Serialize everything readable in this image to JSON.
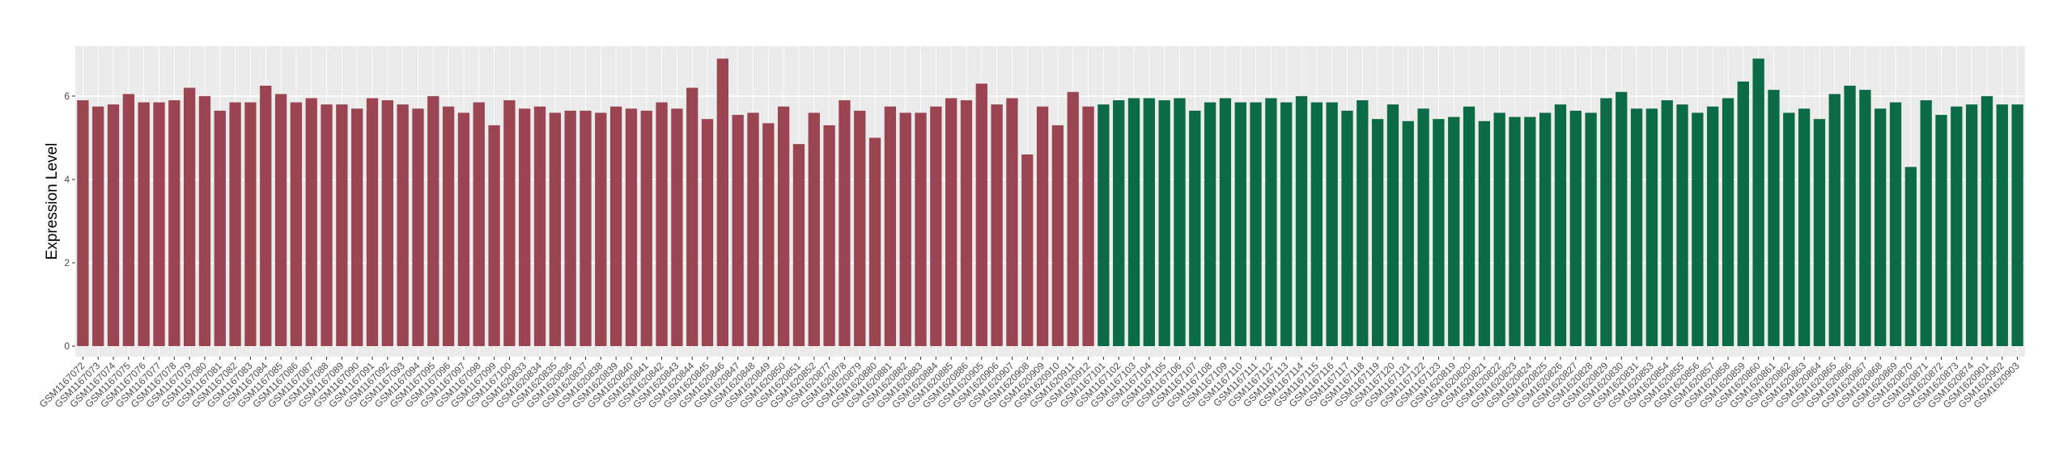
{
  "chart_data": {
    "type": "bar",
    "y_label": "Expression Level",
    "ylim": [
      -0.25,
      7.2
    ],
    "yticks": [
      0,
      2,
      4,
      6
    ],
    "grid": true,
    "categories": [
      "GSM1167072",
      "GSM1167073",
      "GSM1167074",
      "GSM1167075",
      "GSM1167076",
      "GSM1167077",
      "GSM1167078",
      "GSM1167079",
      "GSM1167080",
      "GSM1167081",
      "GSM1167082",
      "GSM1167083",
      "GSM1167084",
      "GSM1167085",
      "GSM1167086",
      "GSM1167087",
      "GSM1167088",
      "GSM1167089",
      "GSM1167090",
      "GSM1167091",
      "GSM1167092",
      "GSM1167093",
      "GSM1167094",
      "GSM1167095",
      "GSM1167096",
      "GSM1167097",
      "GSM1167098",
      "GSM1167099",
      "GSM1167100",
      "GSM1620833",
      "GSM1620834",
      "GSM1620835",
      "GSM1620836",
      "GSM1620837",
      "GSM1620838",
      "GSM1620839",
      "GSM1620840",
      "GSM1620841",
      "GSM1620842",
      "GSM1620843",
      "GSM1620844",
      "GSM1620845",
      "GSM1620846",
      "GSM1620847",
      "GSM1620848",
      "GSM1620849",
      "GSM1620850",
      "GSM1620851",
      "GSM1620852",
      "GSM1620877",
      "GSM1620878",
      "GSM1620879",
      "GSM1620880",
      "GSM1620881",
      "GSM1620882",
      "GSM1620883",
      "GSM1620884",
      "GSM1620885",
      "GSM1620886",
      "GSM1620905",
      "GSM1620906",
      "GSM1620907",
      "GSM1620908",
      "GSM1620909",
      "GSM1620910",
      "GSM1620911",
      "GSM1620912",
      "GSM1167101",
      "GSM1167102",
      "GSM1167103",
      "GSM1167104",
      "GSM1167105",
      "GSM1167106",
      "GSM1167107",
      "GSM1167108",
      "GSM1167109",
      "GSM1167110",
      "GSM1167111",
      "GSM1167112",
      "GSM1167113",
      "GSM1167114",
      "GSM1167115",
      "GSM1167116",
      "GSM1167117",
      "GSM1167118",
      "GSM1167119",
      "GSM1167120",
      "GSM1167121",
      "GSM1167122",
      "GSM1167123",
      "GSM1620819",
      "GSM1620820",
      "GSM1620821",
      "GSM1620822",
      "GSM1620823",
      "GSM1620824",
      "GSM1620825",
      "GSM1620826",
      "GSM1620827",
      "GSM1620828",
      "GSM1620829",
      "GSM1620830",
      "GSM1620831",
      "GSM1620853",
      "GSM1620854",
      "GSM1620855",
      "GSM1620856",
      "GSM1620857",
      "GSM1620858",
      "GSM1620859",
      "GSM1620860",
      "GSM1620861",
      "GSM1620862",
      "GSM1620863",
      "GSM1620864",
      "GSM1620865",
      "GSM1620866",
      "GSM1620867",
      "GSM1620868",
      "GSM1620869",
      "GSM1620870",
      "GSM1620871",
      "GSM1620872",
      "GSM1620873",
      "GSM1620874",
      "GSM1620901",
      "GSM1620902",
      "GSM1620903"
    ],
    "values": [
      5.9,
      5.75,
      5.8,
      6.05,
      5.85,
      5.85,
      5.9,
      6.2,
      6.0,
      5.65,
      5.85,
      5.85,
      6.25,
      6.05,
      5.85,
      5.95,
      5.8,
      5.8,
      5.7,
      5.95,
      5.9,
      5.8,
      5.7,
      6.0,
      5.75,
      5.6,
      5.85,
      5.3,
      5.9,
      5.7,
      5.75,
      5.6,
      5.65,
      5.65,
      5.6,
      5.75,
      5.7,
      5.65,
      5.85,
      5.7,
      6.2,
      5.45,
      6.9,
      5.55,
      5.6,
      5.35,
      5.75,
      4.85,
      5.6,
      5.3,
      5.9,
      5.65,
      5.0,
      5.75,
      5.6,
      5.6,
      5.75,
      5.95,
      5.9,
      6.3,
      5.8,
      5.95,
      4.6,
      5.75,
      5.3,
      6.1,
      5.75,
      5.8,
      5.9,
      5.95,
      5.95,
      5.9,
      5.95,
      5.65,
      5.85,
      5.95,
      5.85,
      5.85,
      5.95,
      5.85,
      6.0,
      5.85,
      5.85,
      5.65,
      5.9,
      5.45,
      5.8,
      5.4,
      5.7,
      5.45,
      5.5,
      5.75,
      5.4,
      5.6,
      5.5,
      5.5,
      5.6,
      5.8,
      5.65,
      5.6,
      5.95,
      6.1,
      5.7,
      5.7,
      5.9,
      5.8,
      5.6,
      5.75,
      5.95,
      6.35,
      6.9,
      6.15,
      5.6,
      5.7,
      5.45,
      6.05,
      6.25,
      6.15,
      5.7,
      5.85,
      4.3,
      5.9,
      5.55,
      5.75,
      5.8,
      6.0,
      5.8,
      5.8
    ],
    "colors": [
      "#9b4452",
      "#9b4452",
      "#9b4452",
      "#9b4452",
      "#9b4452",
      "#9b4452",
      "#9b4452",
      "#9b4452",
      "#9b4452",
      "#9b4452",
      "#9b4452",
      "#9b4452",
      "#9b4452",
      "#9b4452",
      "#9b4452",
      "#9b4452",
      "#9b4452",
      "#9b4452",
      "#9b4452",
      "#9b4452",
      "#9b4452",
      "#9b4452",
      "#9b4452",
      "#9b4452",
      "#9b4452",
      "#9b4452",
      "#9b4452",
      "#9b4452",
      "#9b4452",
      "#9b4452",
      "#9b4452",
      "#9b4452",
      "#9b4452",
      "#9b4452",
      "#9b4452",
      "#9b4452",
      "#9b4452",
      "#9b4452",
      "#9b4452",
      "#9b4452",
      "#9b4452",
      "#9b4452",
      "#9b4452",
      "#9b4452",
      "#9b4452",
      "#9b4452",
      "#9b4452",
      "#9b4452",
      "#9b4452",
      "#9b4452",
      "#9b4452",
      "#9b4452",
      "#9b4452",
      "#9b4452",
      "#9b4452",
      "#9b4452",
      "#9b4452",
      "#9b4452",
      "#9b4452",
      "#9b4452",
      "#9b4452",
      "#9b4452",
      "#9b4452",
      "#9b4452",
      "#9b4452",
      "#9b4452",
      "#9b4452",
      "#0b6b47",
      "#0b6b47",
      "#0b6b47",
      "#0b6b47",
      "#0b6b47",
      "#0b6b47",
      "#0b6b47",
      "#0b6b47",
      "#0b6b47",
      "#0b6b47",
      "#0b6b47",
      "#0b6b47",
      "#0b6b47",
      "#0b6b47",
      "#0b6b47",
      "#0b6b47",
      "#0b6b47",
      "#0b6b47",
      "#0b6b47",
      "#0b6b47",
      "#0b6b47",
      "#0b6b47",
      "#0b6b47",
      "#0b6b47",
      "#0b6b47",
      "#0b6b47",
      "#0b6b47",
      "#0b6b47",
      "#0b6b47",
      "#0b6b47",
      "#0b6b47",
      "#0b6b47",
      "#0b6b47",
      "#0b6b47",
      "#0b6b47",
      "#0b6b47",
      "#0b6b47",
      "#0b6b47",
      "#0b6b47",
      "#0b6b47",
      "#0b6b47",
      "#0b6b47",
      "#0b6b47",
      "#0b6b47",
      "#0b6b47",
      "#0b6b47",
      "#0b6b47",
      "#0b6b47",
      "#0b6b47",
      "#0b6b47",
      "#0b6b47",
      "#0b6b47",
      "#0b6b47",
      "#0b6b47",
      "#0b6b47",
      "#0b6b47",
      "#0b6b47",
      "#0b6b47",
      "#0b6b47",
      "#0b6b47",
      "#0b6b47"
    ]
  }
}
